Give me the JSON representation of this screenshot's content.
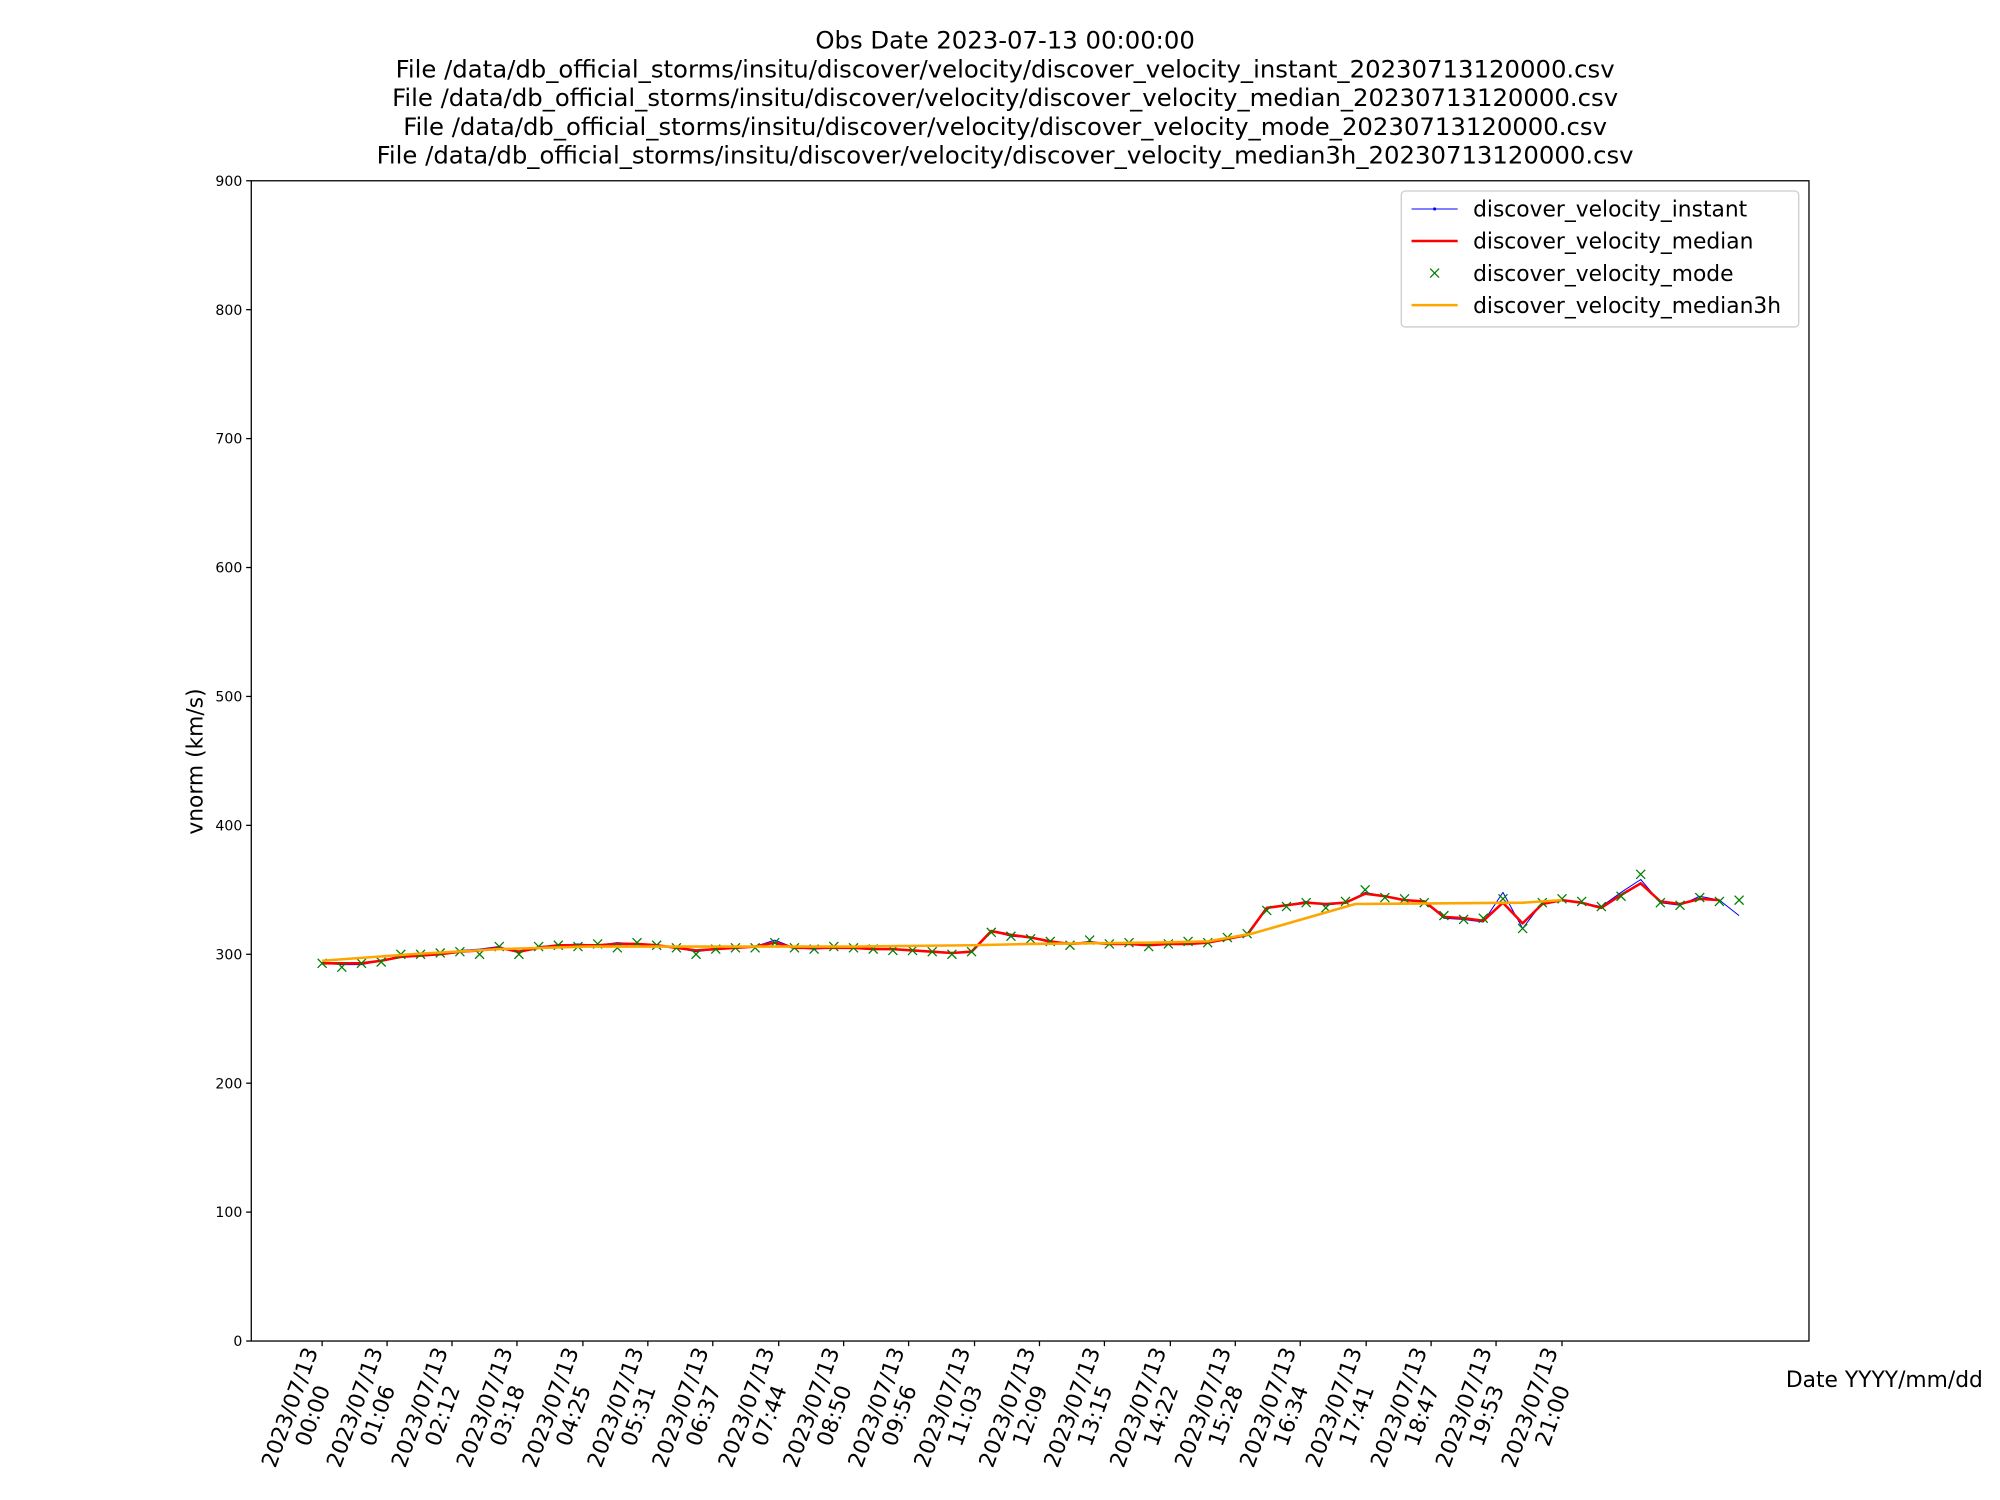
{
  "chart_data": {
    "type": "line",
    "title": [
      "Obs Date 2023-07-13 00:00:00",
      "File /data/db_official_storms/insitu/discover/velocity/discover_velocity_instant_20230713120000.csv",
      "File /data/db_official_storms/insitu/discover/velocity/discover_velocity_median_20230713120000.csv",
      "File /data/db_official_storms/insitu/discover/velocity/discover_velocity_mode_20230713120000.csv",
      "File /data/db_official_storms/insitu/discover/velocity/discover_velocity_median3h_20230713120000.csv"
    ],
    "y_label": "vnorm (km/s)",
    "x_label": "Date YYYY/mm/dd",
    "legend": "upper right",
    "xlim": [
      "2023-07-12 22:48",
      "2023-07-14 01:11"
    ],
    "xticks": [
      {
        "value": "2023-07-13 00:00",
        "label": "2023/07/13\n00:00"
      },
      {
        "value": "2023-07-13 01:06",
        "label": "2023/07/13\n01:06"
      },
      {
        "value": "2023-07-13 02:12",
        "label": "2023/07/13\n02:12"
      },
      {
        "value": "2023-07-13 03:18",
        "label": "2023/07/13\n03:18"
      },
      {
        "value": "2023-07-13 04:25",
        "label": "2023/07/13\n04:25"
      },
      {
        "value": "2023-07-13 05:31",
        "label": "2023/07/13\n05:31"
      },
      {
        "value": "2023-07-13 06:37",
        "label": "2023/07/13\n06:37"
      },
      {
        "value": "2023-07-13 07:44",
        "label": "2023/07/13\n07:44"
      },
      {
        "value": "2023-07-13 08:50",
        "label": "2023/07/13\n08:50"
      },
      {
        "value": "2023-07-13 09:56",
        "label": "2023/07/13\n09:56"
      },
      {
        "value": "2023-07-13 11:03",
        "label": "2023/07/13\n11:03"
      },
      {
        "value": "2023-07-13 12:09",
        "label": "2023/07/13\n12:09"
      },
      {
        "value": "2023-07-13 13:15",
        "label": "2023/07/13\n13:15"
      },
      {
        "value": "2023-07-13 14:22",
        "label": "2023/07/13\n14:22"
      },
      {
        "value": "2023-07-13 15:28",
        "label": "2023/07/13\n15:28"
      },
      {
        "value": "2023-07-13 16:34",
        "label": "2023/07/13\n16:34"
      },
      {
        "value": "2023-07-13 17:41",
        "label": "2023/07/13\n17:41"
      },
      {
        "value": "2023-07-13 18:47",
        "label": "2023/07/13\n18:47"
      },
      {
        "value": "2023-07-13 19:53",
        "label": "2023/07/13\n19:53"
      },
      {
        "value": "2023-07-13 21:00",
        "label": "2023/07/13\n21:00"
      }
    ],
    "ylim": [
      0,
      900
    ],
    "yticks": [
      0,
      100,
      200,
      300,
      400,
      500,
      600,
      700,
      800,
      900
    ],
    "x": [
      "2023-07-13 00:00",
      "2023-07-13 00:20",
      "2023-07-13 00:40",
      "2023-07-13 01:00",
      "2023-07-13 01:20",
      "2023-07-13 01:40",
      "2023-07-13 02:00",
      "2023-07-13 02:20",
      "2023-07-13 02:40",
      "2023-07-13 03:00",
      "2023-07-13 03:20",
      "2023-07-13 03:40",
      "2023-07-13 04:00",
      "2023-07-13 04:20",
      "2023-07-13 04:40",
      "2023-07-13 05:00",
      "2023-07-13 05:20",
      "2023-07-13 05:40",
      "2023-07-13 06:00",
      "2023-07-13 06:20",
      "2023-07-13 06:40",
      "2023-07-13 07:00",
      "2023-07-13 07:20",
      "2023-07-13 07:40",
      "2023-07-13 08:00",
      "2023-07-13 08:20",
      "2023-07-13 08:40",
      "2023-07-13 09:00",
      "2023-07-13 09:20",
      "2023-07-13 09:40",
      "2023-07-13 10:00",
      "2023-07-13 10:20",
      "2023-07-13 10:40",
      "2023-07-13 11:00",
      "2023-07-13 11:20",
      "2023-07-13 11:40",
      "2023-07-13 12:00",
      "2023-07-13 12:20",
      "2023-07-13 12:40",
      "2023-07-13 13:00",
      "2023-07-13 13:20",
      "2023-07-13 13:40",
      "2023-07-13 14:00",
      "2023-07-13 14:20",
      "2023-07-13 14:40",
      "2023-07-13 15:00",
      "2023-07-13 15:20",
      "2023-07-13 15:40",
      "2023-07-13 16:00",
      "2023-07-13 16:20",
      "2023-07-13 16:40",
      "2023-07-13 17:00",
      "2023-07-13 17:20",
      "2023-07-13 17:40",
      "2023-07-13 18:00",
      "2023-07-13 18:20",
      "2023-07-13 18:40",
      "2023-07-13 19:00",
      "2023-07-13 19:20",
      "2023-07-13 19:40",
      "2023-07-13 20:00",
      "2023-07-13 20:20",
      "2023-07-13 20:40",
      "2023-07-13 21:00",
      "2023-07-13 21:20",
      "2023-07-13 21:40",
      "2023-07-13 22:00",
      "2023-07-13 22:20",
      "2023-07-13 22:40",
      "2023-07-13 23:00",
      "2023-07-13 23:20",
      "2023-07-13 23:40",
      "2023-07-14 00:00"
    ],
    "series": [
      {
        "name": "discover_velocity_instant",
        "color": "#0000ff",
        "line": true,
        "marker": ".",
        "values": [
          293,
          292,
          292,
          295,
          299,
          299,
          300,
          303,
          304,
          306,
          301,
          306,
          307,
          308,
          307,
          309,
          308,
          307,
          305,
          302,
          304,
          305,
          306,
          311,
          305,
          304,
          305,
          306,
          304,
          304,
          303,
          302,
          301,
          302,
          318,
          314,
          313,
          309,
          308,
          310,
          308,
          308,
          307,
          308,
          309,
          309,
          312,
          316,
          336,
          338,
          341,
          338,
          340,
          348,
          345,
          342,
          341,
          328,
          327,
          325,
          348,
          320,
          340,
          342,
          340,
          337,
          348,
          358,
          340,
          338,
          345,
          342,
          330
        ]
      },
      {
        "name": "discover_velocity_median",
        "color": "#ff0000",
        "line": true,
        "marker": null,
        "values": [
          293,
          293,
          293,
          295,
          298,
          299,
          300,
          302,
          303,
          305,
          302,
          305,
          307,
          307,
          307,
          308,
          308,
          307,
          305,
          303,
          304,
          305,
          306,
          309,
          305,
          305,
          305,
          305,
          304,
          304,
          303,
          302,
          301,
          302,
          318,
          315,
          313,
          310,
          308,
          309,
          308,
          308,
          307,
          308,
          308,
          309,
          312,
          315,
          336,
          338,
          340,
          339,
          340,
          347,
          345,
          342,
          341,
          329,
          328,
          326,
          340,
          324,
          339,
          342,
          340,
          336,
          346,
          355,
          341,
          339,
          343,
          342,
          null
        ]
      },
      {
        "name": "discover_velocity_mode",
        "color": "#008000",
        "line": false,
        "marker": "x",
        "values": [
          293,
          290,
          293,
          294,
          300,
          300,
          301,
          302,
          300,
          306,
          300,
          306,
          307,
          306,
          308,
          305,
          309,
          307,
          305,
          300,
          304,
          305,
          305,
          309,
          305,
          304,
          306,
          305,
          304,
          303,
          303,
          302,
          300,
          302,
          317,
          314,
          312,
          310,
          307,
          311,
          308,
          309,
          306,
          308,
          310,
          309,
          313,
          316,
          334,
          337,
          340,
          336,
          341,
          350,
          344,
          343,
          340,
          330,
          327,
          328,
          343,
          320,
          340,
          343,
          341,
          337,
          345,
          362,
          340,
          338,
          344,
          341,
          342
        ]
      },
      {
        "name": "discover_velocity_median3h",
        "color": "#ffa500",
        "line": true,
        "marker": null,
        "x": [
          "2023-07-13 00:00",
          "2023-07-13 01:30",
          "2023-07-13 03:00",
          "2023-07-13 04:30",
          "2023-07-13 06:00",
          "2023-07-13 09:00",
          "2023-07-13 11:00",
          "2023-07-13 12:00",
          "2023-07-13 14:00",
          "2023-07-13 15:00",
          "2023-07-13 15:45",
          "2023-07-13 17:30",
          "2023-07-13 20:20",
          "2023-07-13 21:00"
        ],
        "values": [
          295,
          300,
          304,
          306,
          306,
          306,
          307,
          308,
          309,
          310,
          316,
          339,
          340,
          342
        ]
      }
    ]
  }
}
